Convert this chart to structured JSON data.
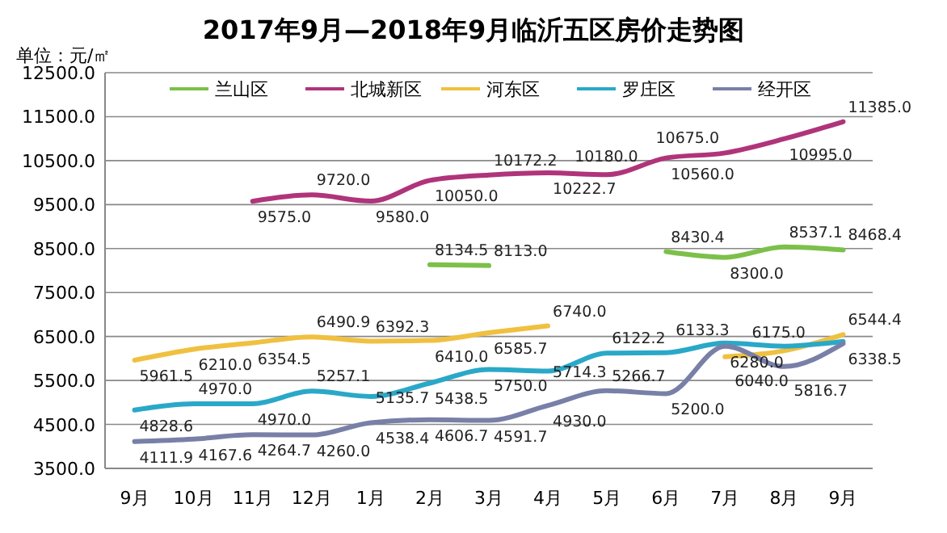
{
  "chart_data": {
    "type": "line",
    "title": "2017年9月—2018年9月临沂五区房价走势图",
    "ylabel": "单位：元/㎡",
    "categories": [
      "9月",
      "10月",
      "11月",
      "12月",
      "1月",
      "2月",
      "3月",
      "4月",
      "5月",
      "6月",
      "7月",
      "8月",
      "9月"
    ],
    "ylim": [
      3500,
      12500
    ],
    "yticks": [
      {
        "value": 3500,
        "label": "3500.0"
      },
      {
        "value": 4500,
        "label": "4500.0"
      },
      {
        "value": 5500,
        "label": "5500.0"
      },
      {
        "value": 6500,
        "label": "6500.0"
      },
      {
        "value": 7500,
        "label": "7500.0"
      },
      {
        "value": 8500,
        "label": "8500.0"
      },
      {
        "value": 9500,
        "label": "9500.0"
      },
      {
        "value": 10500,
        "label": "10500.0"
      },
      {
        "value": 11500,
        "label": "11500.0"
      },
      {
        "value": 12500,
        "label": "12500.0"
      }
    ],
    "grid": "y",
    "legend": "top",
    "marker": "none",
    "line_style": "solid",
    "series": [
      {
        "name": "兰山区",
        "color": "#7cc04a",
        "values": [
          null,
          null,
          null,
          null,
          null,
          8134.5,
          8113.0,
          null,
          null,
          8430.4,
          8300.0,
          8537.1,
          8468.4
        ],
        "value_labels": [
          null,
          null,
          null,
          null,
          null,
          "8134.5",
          "8113.0",
          null,
          null,
          "8430.4",
          "8300.0",
          "8537.1",
          "8468.4"
        ]
      },
      {
        "name": "北城新区",
        "color": "#b0347a",
        "values": [
          null,
          null,
          9575.0,
          9720.0,
          9580.0,
          10050.0,
          10172.2,
          10222.7,
          10180.0,
          10560.0,
          10675.0,
          10995.0,
          11385.0
        ],
        "value_labels": [
          null,
          null,
          "9575.0",
          "9720.0",
          "9580.0",
          "10050.0",
          "10172.2",
          "10222.7",
          "10180.0",
          "10560.0",
          "10675.0",
          "10995.0",
          "11385.0"
        ]
      },
      {
        "name": "河东区",
        "color": "#f0c040",
        "values": [
          5961.5,
          6210.0,
          6354.5,
          6490.9,
          6392.3,
          6410.0,
          6585.7,
          6740.0,
          null,
          null,
          6040.0,
          6175.0,
          6544.4
        ],
        "value_labels": [
          "5961.5",
          "6210.0",
          "6354.5",
          "6490.9",
          "6392.3",
          "6410.0",
          "6585.7",
          "6740.0",
          null,
          null,
          "6040.0",
          "6175.0",
          "6544.4"
        ]
      },
      {
        "name": "罗庄区",
        "color": "#2aa8c8",
        "values": [
          4828.6,
          4970.0,
          4970.0,
          5257.1,
          5135.7,
          5438.5,
          5750.0,
          5714.3,
          6122.2,
          6133.3,
          6350,
          6280,
          6390
        ],
        "value_labels": [
          "4828.6",
          "4970.0",
          "4970.0",
          "5257.1",
          "5135.7",
          "5438.5",
          "5750.0",
          "5714.3",
          "6122.2",
          "6133.3",
          null,
          null,
          null
        ]
      },
      {
        "name": "经开区",
        "color": "#7880a8",
        "values": [
          4111.9,
          4167.6,
          4264.7,
          4260.0,
          4538.4,
          4606.7,
          4591.7,
          4930.0,
          5266.7,
          5200.0,
          6280.0,
          5816.7,
          6338.5
        ],
        "value_labels": [
          "4111.9",
          "4167.6",
          "4264.7",
          "4260.0",
          "4538.4",
          "4606.7",
          "4591.7",
          "4930.0",
          "5266.7",
          "5200.0",
          "6280.0",
          "5816.7",
          "6338.5"
        ]
      }
    ]
  }
}
